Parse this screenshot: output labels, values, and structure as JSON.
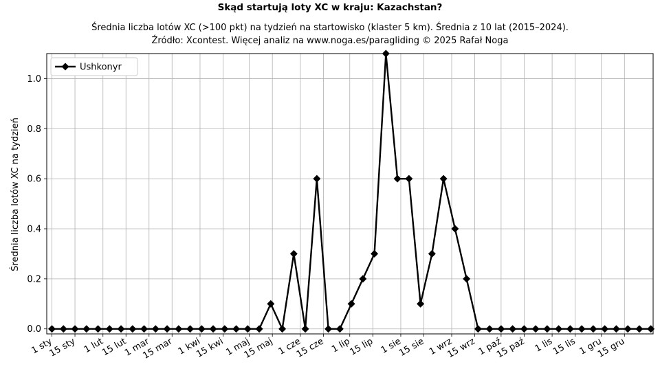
{
  "chart_data": {
    "type": "line",
    "title": "Skąd startują loty XC w kraju: Kazachstan?",
    "subtitle_lines": [
      "Średnia liczba lotów XC (>100 pkt) na tydzień na startowisko (klaster 5 km). Średnia z 10 lat (2015–2024).",
      "Źródło: Xcontest. Więcej analiz na www.noga.es/paragliding © 2025 Rafał Noga"
    ],
    "xlabel": "",
    "ylabel": "Średnia liczba lotów XC na tydzień",
    "x": [
      1,
      2,
      3,
      4,
      5,
      6,
      7,
      8,
      9,
      10,
      11,
      12,
      13,
      14,
      15,
      16,
      17,
      18,
      19,
      20,
      21,
      22,
      23,
      24,
      25,
      26,
      27,
      28,
      29,
      30,
      31,
      32,
      33,
      34,
      35,
      36,
      37,
      38,
      39,
      40,
      41,
      42,
      43,
      44,
      45,
      46,
      47,
      48,
      49,
      50,
      51,
      52,
      53
    ],
    "series": [
      {
        "name": "Ushkonyr",
        "color": "#000000",
        "marker": "diamond",
        "values": [
          0,
          0,
          0,
          0,
          0,
          0,
          0,
          0,
          0,
          0,
          0,
          0,
          0,
          0,
          0,
          0,
          0,
          0,
          0,
          0.1,
          0,
          0.3,
          0,
          0.6,
          0,
          0,
          0.1,
          0.2,
          0.3,
          1.1,
          0.6,
          0.6,
          0.1,
          0.3,
          0.6,
          0.4,
          0.2,
          0,
          0,
          0,
          0,
          0,
          0,
          0,
          0,
          0,
          0,
          0,
          0,
          0,
          0,
          0,
          0
        ]
      }
    ],
    "xticks": [
      {
        "label": "1 sty",
        "week": 1
      },
      {
        "label": "15 sty",
        "week": 3
      },
      {
        "label": "1 lut",
        "week": 5.43
      },
      {
        "label": "15 lut",
        "week": 7.43
      },
      {
        "label": "1 mar",
        "week": 9.43
      },
      {
        "label": "15 mar",
        "week": 11.43
      },
      {
        "label": "1 kwi",
        "week": 13.86
      },
      {
        "label": "15 kwi",
        "week": 15.86
      },
      {
        "label": "1 maj",
        "week": 18.14
      },
      {
        "label": "15 maj",
        "week": 20.14
      },
      {
        "label": "1 cze",
        "week": 22.57
      },
      {
        "label": "15 cze",
        "week": 24.57
      },
      {
        "label": "1 lip",
        "week": 26.86
      },
      {
        "label": "15 lip",
        "week": 28.86
      },
      {
        "label": "1 sie",
        "week": 31.29
      },
      {
        "label": "15 sie",
        "week": 33.29
      },
      {
        "label": "1 wrz",
        "week": 35.71
      },
      {
        "label": "15 wrz",
        "week": 37.71
      },
      {
        "label": "1 paź",
        "week": 40
      },
      {
        "label": "15 paź",
        "week": 42
      },
      {
        "label": "1 lis",
        "week": 44.43
      },
      {
        "label": "15 lis",
        "week": 46.43
      },
      {
        "label": "1 gru",
        "week": 48.71
      },
      {
        "label": "15 gru",
        "week": 50.71
      }
    ],
    "yticks": [
      0.0,
      0.2,
      0.4,
      0.6,
      0.8,
      1.0
    ],
    "ytick_labels": [
      "0.0",
      "0.2",
      "0.4",
      "0.6",
      "0.8",
      "1.0"
    ],
    "xlim": [
      1,
      53
    ],
    "ylim": [
      -0.02,
      1.1
    ],
    "grid": true,
    "legend_placement": "top-left"
  }
}
